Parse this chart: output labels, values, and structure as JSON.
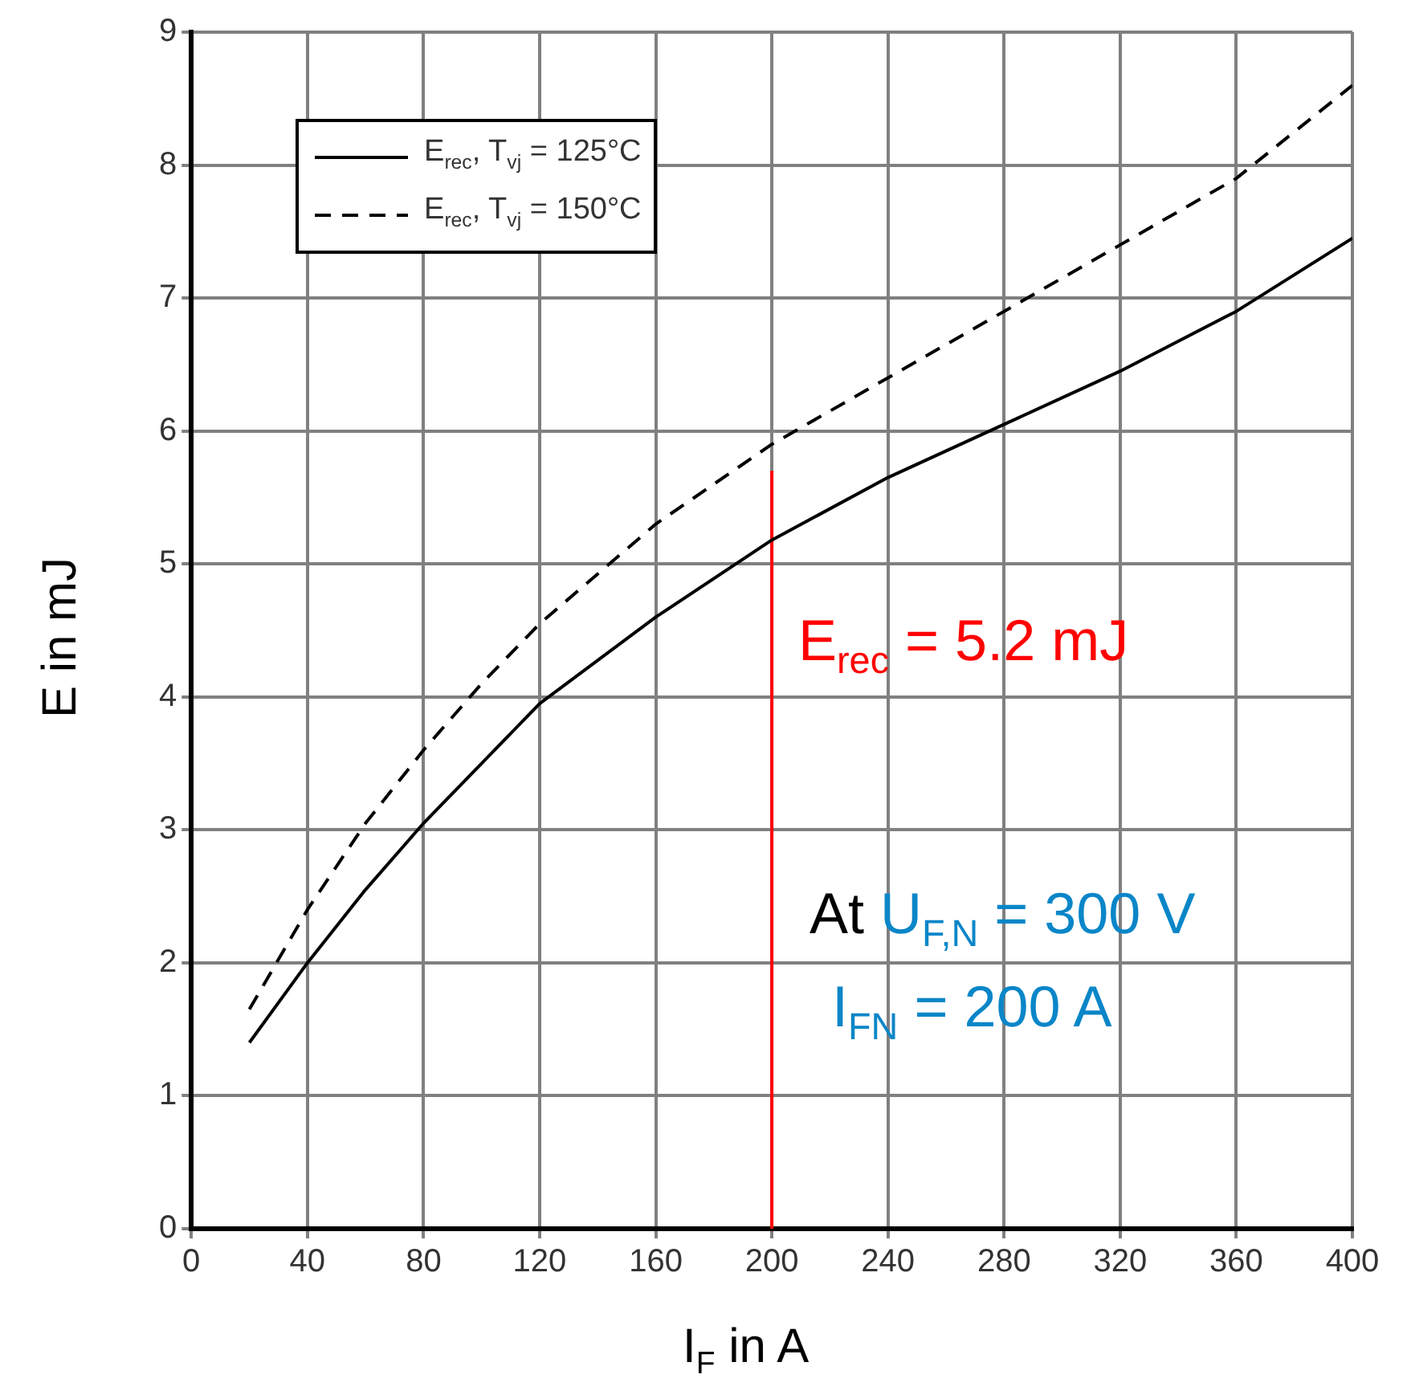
{
  "chart_data": {
    "type": "line",
    "xlabel": "I$_{F}$ in A",
    "ylabel": "E in mJ",
    "xlim": [
      0,
      400
    ],
    "xticks": [
      0,
      40,
      80,
      120,
      160,
      200,
      240,
      280,
      320,
      360,
      400
    ],
    "ylim": [
      0,
      9
    ],
    "yticks": [
      0,
      1,
      2,
      3,
      4,
      5,
      6,
      7,
      8,
      9
    ],
    "grid": true,
    "legend": "top left",
    "marker": "none",
    "series": [
      {
        "name": "E$_{rec}$, T$_{vj}$ = 125°C",
        "color": "#000000",
        "line_style": "solid",
        "x": [
          20,
          40,
          60,
          80,
          100,
          120,
          160,
          200,
          240,
          280,
          320,
          360,
          400
        ],
        "values": [
          1.4,
          2.0,
          2.55,
          3.05,
          3.5,
          3.95,
          4.6,
          5.18,
          5.65,
          6.05,
          6.45,
          6.9,
          7.45
        ]
      },
      {
        "name": "E$_{rec}$, T$_{vj}$ = 150°C",
        "color": "#000000",
        "line_style": "dashed",
        "x": [
          20,
          40,
          60,
          80,
          100,
          120,
          160,
          200,
          240,
          280,
          320,
          360,
          400
        ],
        "values": [
          1.65,
          2.4,
          3.05,
          3.6,
          4.1,
          4.55,
          5.3,
          5.9,
          6.4,
          6.9,
          7.4,
          7.9,
          8.6
        ]
      },
      {
        "color": "#ff0000",
        "line_style": "solid",
        "x": [
          200,
          200
        ],
        "values": [
          0,
          5.7
        ]
      }
    ],
    "annotations": [
      "E$_{rec}$ = 5.2 mJ",
      "At U$_{F,N}$ = 300 V",
      "I$_{FN}$ = 200 A"
    ]
  }
}
